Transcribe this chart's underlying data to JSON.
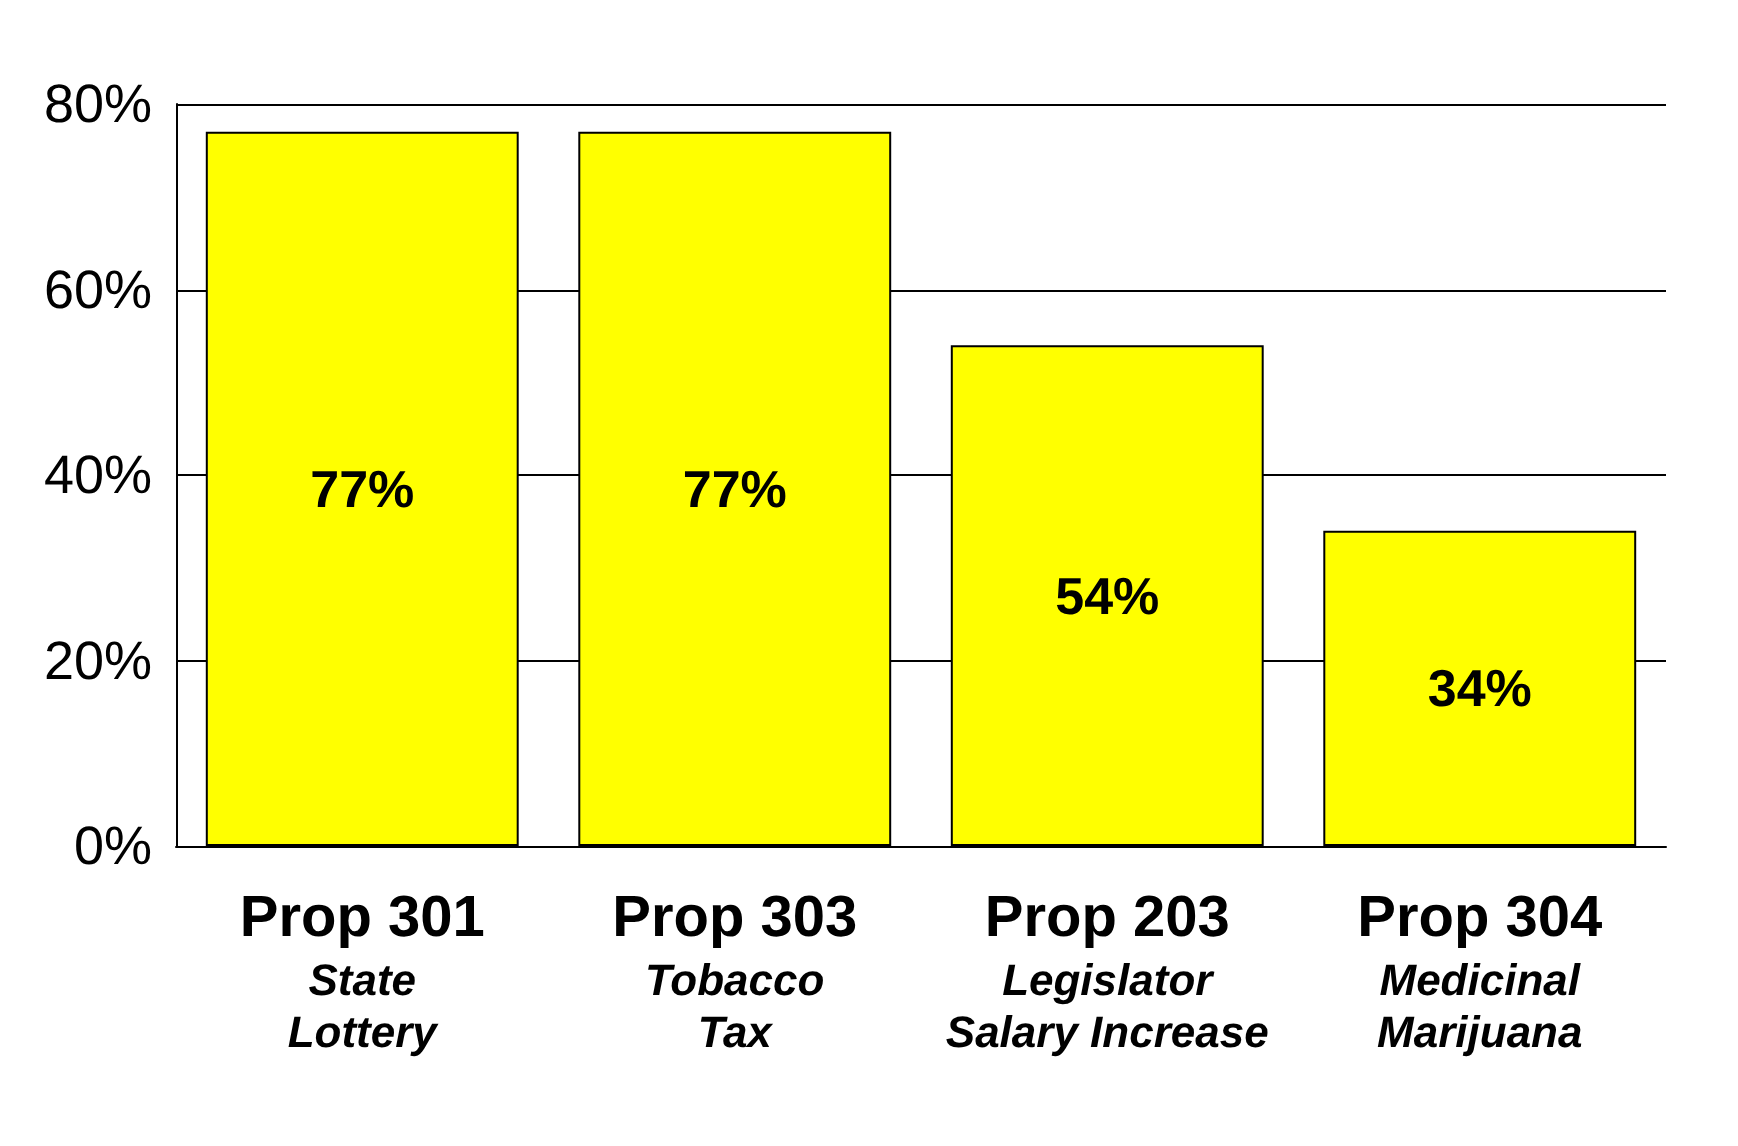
{
  "chart_data": {
    "type": "bar",
    "categories": [
      "Prop 301\nState\nLottery",
      "Prop 303\nTobacco\nTax",
      "Prop 203\nLegislator\nSalary Increase",
      "Prop 304\nMedicinal\nMarijuana"
    ],
    "values": [
      77,
      77,
      54,
      34
    ],
    "value_labels": [
      "77%",
      "77%",
      "54%",
      "34%"
    ],
    "color": "#ffff00",
    "ylim": [
      0,
      80
    ],
    "yticks": [
      {
        "value": 0,
        "label": "0%"
      },
      {
        "value": 20,
        "label": "20%"
      },
      {
        "value": 40,
        "label": "40%"
      },
      {
        "value": 60,
        "label": "60%"
      },
      {
        "value": 80,
        "label": "80%"
      }
    ],
    "grid": "y"
  }
}
